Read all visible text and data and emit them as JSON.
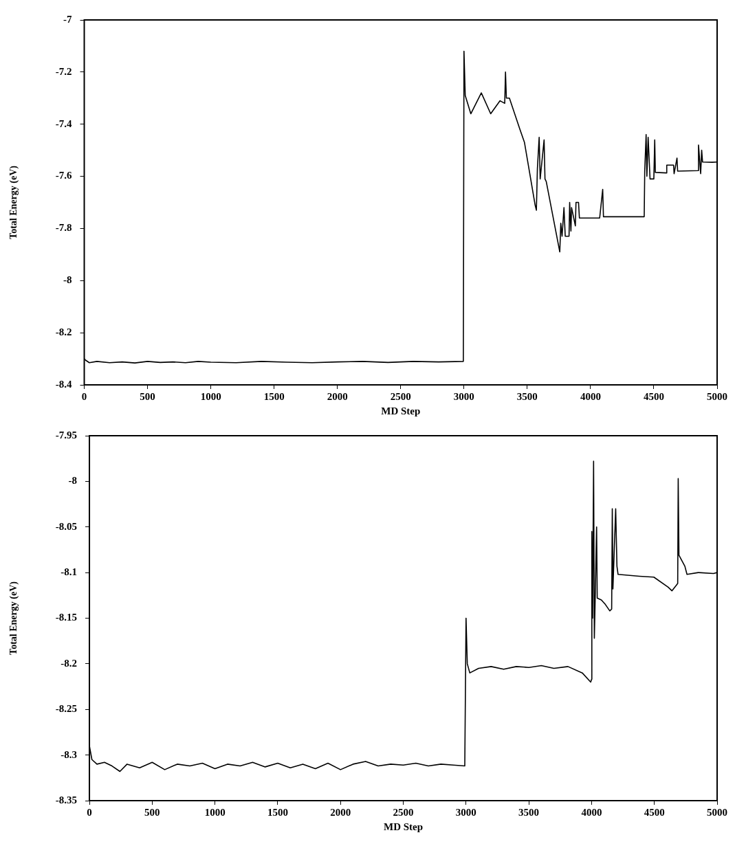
{
  "chart_data": [
    {
      "type": "line",
      "xlabel": "MD Step",
      "ylabel": "Total Energy (eV)",
      "xlim": [
        0,
        5000
      ],
      "xticks": [
        0,
        500,
        1000,
        1500,
        2000,
        2500,
        3000,
        3500,
        4000,
        4500,
        5000
      ],
      "ylim": [
        -8.4,
        -7
      ],
      "yticks": [
        -8.4,
        -8.2,
        -8,
        -7.8,
        -7.6,
        -7.4,
        -7.2,
        -7
      ],
      "marker": "none",
      "line_style": "solid",
      "x": [
        0,
        10,
        40,
        100,
        200,
        300,
        400,
        500,
        600,
        700,
        800,
        900,
        1000,
        1200,
        1400,
        1600,
        1800,
        2000,
        2200,
        2400,
        2600,
        2800,
        2995,
        3000,
        3010,
        3054,
        3137,
        3211,
        3285,
        3322,
        3328,
        3335,
        3359,
        3442,
        3478,
        3562,
        3572,
        3580,
        3594,
        3602,
        3633,
        3640,
        3650,
        3757,
        3765,
        3775,
        3790,
        3800,
        3830,
        3835,
        3845,
        3850,
        3880,
        3885,
        3905,
        3912,
        4072,
        4096,
        4102,
        4424,
        4428,
        4439,
        4445,
        4455,
        4470,
        4500,
        4507,
        4512,
        4600,
        4602,
        4656,
        4660,
        4683,
        4688,
        4850,
        4853,
        4870,
        4878,
        4885,
        4961,
        5000
      ],
      "series": [
        {
          "color": "#000000",
          "values": [
            -8.3,
            -8.305,
            -8.315,
            -8.31,
            -8.315,
            -8.312,
            -8.316,
            -8.31,
            -8.314,
            -8.312,
            -8.315,
            -8.31,
            -8.313,
            -8.315,
            -8.31,
            -8.313,
            -8.315,
            -8.312,
            -8.31,
            -8.314,
            -8.31,
            -8.312,
            -8.31,
            -7.12,
            -7.29,
            -7.36,
            -7.28,
            -7.36,
            -7.31,
            -7.32,
            -7.2,
            -7.3,
            -7.3,
            -7.42,
            -7.47,
            -7.71,
            -7.73,
            -7.57,
            -7.45,
            -7.61,
            -7.46,
            -7.61,
            -7.62,
            -7.89,
            -7.78,
            -7.83,
            -7.72,
            -7.83,
            -7.83,
            -7.7,
            -7.81,
            -7.72,
            -7.79,
            -7.7,
            -7.7,
            -7.76,
            -7.76,
            -7.65,
            -7.755,
            -7.755,
            -7.58,
            -7.44,
            -7.6,
            -7.45,
            -7.61,
            -7.61,
            -7.46,
            -7.585,
            -7.587,
            -7.557,
            -7.557,
            -7.59,
            -7.53,
            -7.58,
            -7.578,
            -7.48,
            -7.59,
            -7.5,
            -7.545,
            -7.546,
            -7.545
          ]
        }
      ]
    },
    {
      "type": "line",
      "xlabel": "MD Step",
      "ylabel": "Total Energy (eV)",
      "xlim": [
        0,
        5000
      ],
      "xticks": [
        0,
        500,
        1000,
        1500,
        2000,
        2500,
        3000,
        3500,
        4000,
        4500,
        5000
      ],
      "ylim": [
        -8.35,
        -7.95
      ],
      "yticks": [
        -8.35,
        -8.3,
        -8.25,
        -8.2,
        -8.15,
        -8.1,
        -8.05,
        -8,
        -7.95
      ],
      "marker": "none",
      "line_style": "solid",
      "x": [
        0,
        20,
        60,
        120,
        180,
        243,
        300,
        400,
        500,
        600,
        700,
        800,
        900,
        1000,
        1100,
        1200,
        1300,
        1400,
        1500,
        1600,
        1700,
        1800,
        1900,
        2000,
        2100,
        2200,
        2300,
        2400,
        2500,
        2600,
        2700,
        2800,
        2900,
        2990,
        3000,
        3010,
        3030,
        3100,
        3200,
        3300,
        3400,
        3500,
        3600,
        3700,
        3812,
        3926,
        3993,
        4000,
        4002,
        4008,
        4016,
        4022,
        4030,
        4040,
        4045,
        4078,
        4110,
        4145,
        4160,
        4165,
        4170,
        4192,
        4202,
        4211,
        4382,
        4496,
        4610,
        4640,
        4686,
        4690,
        4696,
        4743,
        4760,
        4850,
        4971,
        5000
      ],
      "series": [
        {
          "color": "#000000",
          "values": [
            -8.29,
            -8.305,
            -8.31,
            -8.308,
            -8.312,
            -8.318,
            -8.31,
            -8.314,
            -8.308,
            -8.316,
            -8.31,
            -8.312,
            -8.309,
            -8.315,
            -8.31,
            -8.312,
            -8.308,
            -8.313,
            -8.309,
            -8.314,
            -8.31,
            -8.315,
            -8.309,
            -8.316,
            -8.31,
            -8.307,
            -8.312,
            -8.31,
            -8.311,
            -8.309,
            -8.312,
            -8.31,
            -8.311,
            -8.312,
            -8.15,
            -8.2,
            -8.21,
            -8.205,
            -8.203,
            -8.206,
            -8.203,
            -8.204,
            -8.202,
            -8.205,
            -8.203,
            -8.21,
            -8.22,
            -8.217,
            -8.055,
            -8.15,
            -7.978,
            -8.172,
            -8.12,
            -8.05,
            -8.128,
            -8.13,
            -8.135,
            -8.142,
            -8.14,
            -8.03,
            -8.118,
            -8.03,
            -8.093,
            -8.102,
            -8.104,
            -8.105,
            -8.116,
            -8.12,
            -8.112,
            -7.997,
            -8.081,
            -8.093,
            -8.102,
            -8.1,
            -8.101,
            -8.1
          ]
        }
      ]
    }
  ]
}
